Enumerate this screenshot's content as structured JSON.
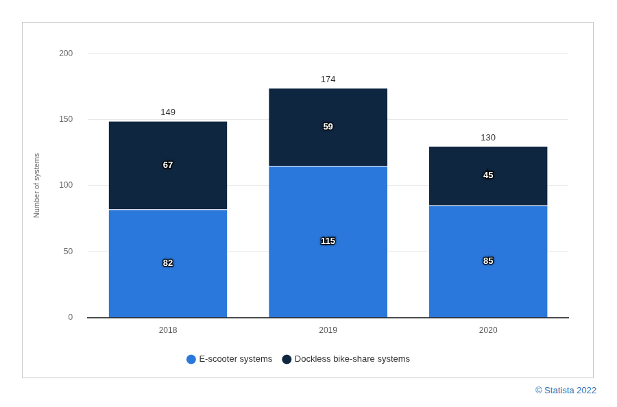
{
  "chart_data": {
    "type": "bar",
    "categories": [
      "2018",
      "2019",
      "2020"
    ],
    "series": [
      {
        "name": "E-scooter systems",
        "color": "#2a78db",
        "values": [
          82,
          115,
          85
        ]
      },
      {
        "name": "Dockless bike-share systems",
        "color": "#0f2641",
        "values": [
          67,
          59,
          45
        ]
      }
    ],
    "totals": [
      149,
      174,
      130
    ],
    "y_label": "Number of systems",
    "ylim": [
      0,
      200
    ],
    "yticks": [
      0,
      50,
      100,
      150,
      200
    ],
    "grid": true,
    "stacked": true,
    "data_labels": true,
    "legend": "bottom",
    "source": "© Statista 2022"
  }
}
